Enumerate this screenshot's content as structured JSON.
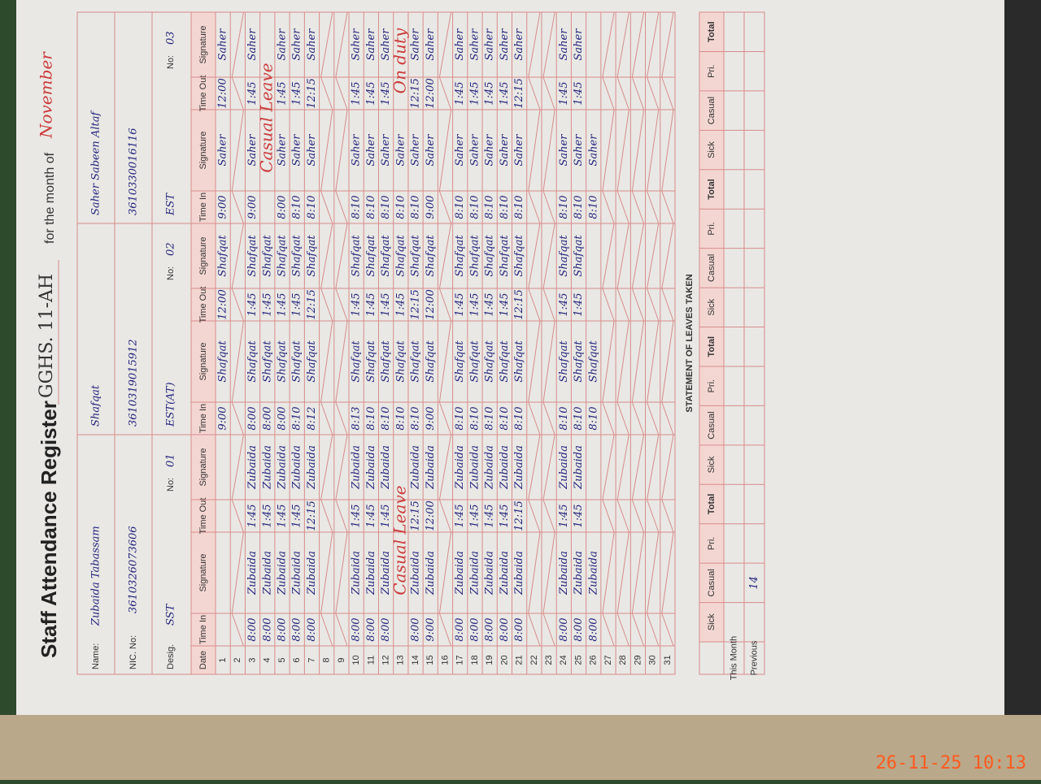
{
  "header": {
    "title": "Staff Attendance Register",
    "school": "GGHS. 11-AH",
    "month_label": "for the month of",
    "month": "November"
  },
  "labels": {
    "name": "Name:",
    "nic": "NIC. No:",
    "desig": "Desig.",
    "no": "No:"
  },
  "staff": [
    {
      "name": "Zubaida Tabassam",
      "nic": "3610326073606",
      "desig": "SST",
      "no": "01"
    },
    {
      "name": "Shafqat",
      "nic": "3610319015912",
      "desig": "EST(AT)",
      "no": "02"
    },
    {
      "name": "Saher Sabeen Altaf",
      "nic": "3610330016116",
      "desig": "EST",
      "no": "03"
    }
  ],
  "date_header": "Date",
  "staff_columns": [
    "Time In",
    "Signature",
    "Time Out",
    "Signature"
  ],
  "rows": [
    {
      "date": "1",
      "entries": [
        null,
        [
          "9:00",
          "Shafqat",
          "12:00",
          "Shafqat"
        ],
        [
          "9:00",
          "Saher",
          "12:00",
          "Saher"
        ]
      ]
    },
    {
      "date": "2"
    },
    {
      "date": "3",
      "entries": [
        [
          "8:00",
          "Zubaida",
          "1:45",
          "Zubaida"
        ],
        [
          "8:00",
          "Shafqat",
          "1:45",
          "Shafqat"
        ],
        [
          "9:00",
          "Saher",
          "1:45",
          "Saher"
        ]
      ]
    },
    {
      "date": "4",
      "entries": [
        [
          "8:00",
          "Zubaida",
          "1:45",
          "Zubaida"
        ],
        [
          "8:00",
          "Shafqat",
          "1:45",
          "Shafqat"
        ],
        "Casual Leave"
      ]
    },
    {
      "date": "5",
      "entries": [
        [
          "8:00",
          "Zubaida",
          "1:45",
          "Zubaida"
        ],
        [
          "8:00",
          "Shafqat",
          "1:45",
          "Shafqat"
        ],
        [
          "8:00",
          "Saher",
          "1:45",
          "Saher"
        ]
      ]
    },
    {
      "date": "6",
      "entries": [
        [
          "8:00",
          "Zubaida",
          "1:45",
          "Zubaida"
        ],
        [
          "8:10",
          "Shafqat",
          "1:45",
          "Shafqat"
        ],
        [
          "8:10",
          "Saher",
          "1:45",
          "Saher"
        ]
      ]
    },
    {
      "date": "7",
      "entries": [
        [
          "8:00",
          "Zubaida",
          "12:15",
          "Zubaida"
        ],
        [
          "8:12",
          "Shafqat",
          "12:15",
          "Shafqat"
        ],
        [
          "8:10",
          "Saher",
          "12:15",
          "Saher"
        ]
      ]
    },
    {
      "date": "8"
    },
    {
      "date": "9"
    },
    {
      "date": "10",
      "entries": [
        [
          "8:00",
          "Zubaida",
          "1:45",
          "Zubaida"
        ],
        [
          "8:13",
          "Shafqat",
          "1:45",
          "Shafqat"
        ],
        [
          "8:10",
          "Saher",
          "1:45",
          "Saher"
        ]
      ]
    },
    {
      "date": "11",
      "entries": [
        [
          "8:00",
          "Zubaida",
          "1:45",
          "Zubaida"
        ],
        [
          "8:10",
          "Shafqat",
          "1:45",
          "Shafqat"
        ],
        [
          "8:10",
          "Saher",
          "1:45",
          "Saher"
        ]
      ]
    },
    {
      "date": "12",
      "entries": [
        [
          "8:00",
          "Zubaida",
          "1:45",
          "Zubaida"
        ],
        [
          "8:10",
          "Shafqat",
          "1:45",
          "Shafqat"
        ],
        [
          "8:10",
          "Saher",
          "1:45",
          "Saher"
        ]
      ]
    },
    {
      "date": "13",
      "entries": [
        "Casual Leave",
        [
          "8:10",
          "Shafqat",
          "1:45",
          "Shafqat"
        ],
        [
          "8:10",
          "Saher",
          "On duty"
        ]
      ]
    },
    {
      "date": "14",
      "entries": [
        [
          "8:00",
          "Zubaida",
          "12:15",
          "Zubaida"
        ],
        [
          "8:10",
          "Shafqat",
          "12:15",
          "Shafqat"
        ],
        [
          "8:10",
          "Saher",
          "12:15",
          "Saher"
        ]
      ]
    },
    {
      "date": "15",
      "entries": [
        [
          "9:00",
          "Zubaida",
          "12:00",
          "Zubaida"
        ],
        [
          "9:00",
          "Shafqat",
          "12:00",
          "Shafqat"
        ],
        [
          "9:00",
          "Saher",
          "12:00",
          "Saher"
        ]
      ]
    },
    {
      "date": "16"
    },
    {
      "date": "17",
      "entries": [
        [
          "8:00",
          "Zubaida",
          "1:45",
          "Zubaida"
        ],
        [
          "8:10",
          "Shafqat",
          "1:45",
          "Shafqat"
        ],
        [
          "8:10",
          "Saher",
          "1:45",
          "Saher"
        ]
      ]
    },
    {
      "date": "18",
      "entries": [
        [
          "8:00",
          "Zubaida",
          "1:45",
          "Zubaida"
        ],
        [
          "8:10",
          "Shafqat",
          "1:45",
          "Shafqat"
        ],
        [
          "8:10",
          "Saher",
          "1:45",
          "Saher"
        ]
      ]
    },
    {
      "date": "19",
      "entries": [
        [
          "8:00",
          "Zubaida",
          "1:45",
          "Zubaida"
        ],
        [
          "8:10",
          "Shafqat",
          "1:45",
          "Shafqat"
        ],
        [
          "8:10",
          "Saher",
          "1:45",
          "Saher"
        ]
      ]
    },
    {
      "date": "20",
      "entries": [
        [
          "8:00",
          "Zubaida",
          "1:45",
          "Zubaida"
        ],
        [
          "8:10",
          "Shafqat",
          "1:45",
          "Shafqat"
        ],
        [
          "8:10",
          "Saher",
          "1:45",
          "Saher"
        ]
      ]
    },
    {
      "date": "21",
      "entries": [
        [
          "8:00",
          "Zubaida",
          "12:15",
          "Zubaida"
        ],
        [
          "8:10",
          "Shafqat",
          "12:15",
          "Shafqat"
        ],
        [
          "8:10",
          "Saher",
          "12:15",
          "Saher"
        ]
      ]
    },
    {
      "date": "22"
    },
    {
      "date": "23"
    },
    {
      "date": "24",
      "entries": [
        [
          "8:00",
          "Zubaida",
          "1:45",
          "Zubaida"
        ],
        [
          "8:10",
          "Shafqat",
          "1:45",
          "Shafqat"
        ],
        [
          "8:10",
          "Saher",
          "1:45",
          "Saher"
        ]
      ]
    },
    {
      "date": "25",
      "entries": [
        [
          "8:00",
          "Zubaida",
          "1:45",
          "Zubaida"
        ],
        [
          "8:10",
          "Shafqat",
          "1:45",
          "Shafqat"
        ],
        [
          "8:10",
          "Saher",
          "1:45",
          "Saher"
        ]
      ]
    },
    {
      "date": "26",
      "entries": [
        [
          "8:00",
          "Zubaida"
        ],
        [
          "8:10",
          "Shafqat"
        ],
        [
          "8:10",
          "Saher"
        ]
      ]
    },
    {
      "date": "27"
    },
    {
      "date": "28"
    },
    {
      "date": "29"
    },
    {
      "date": "30"
    },
    {
      "date": "31"
    }
  ],
  "statement": {
    "title": "STATEMENT OF LEAVES TAKEN",
    "columns": [
      "Sick",
      "Casual",
      "Pri.",
      "Total"
    ],
    "rows": [
      {
        "label": "This Month"
      },
      {
        "label": "Previous",
        "casual": "14"
      }
    ]
  },
  "timestamp": "26-11-25  10:13"
}
